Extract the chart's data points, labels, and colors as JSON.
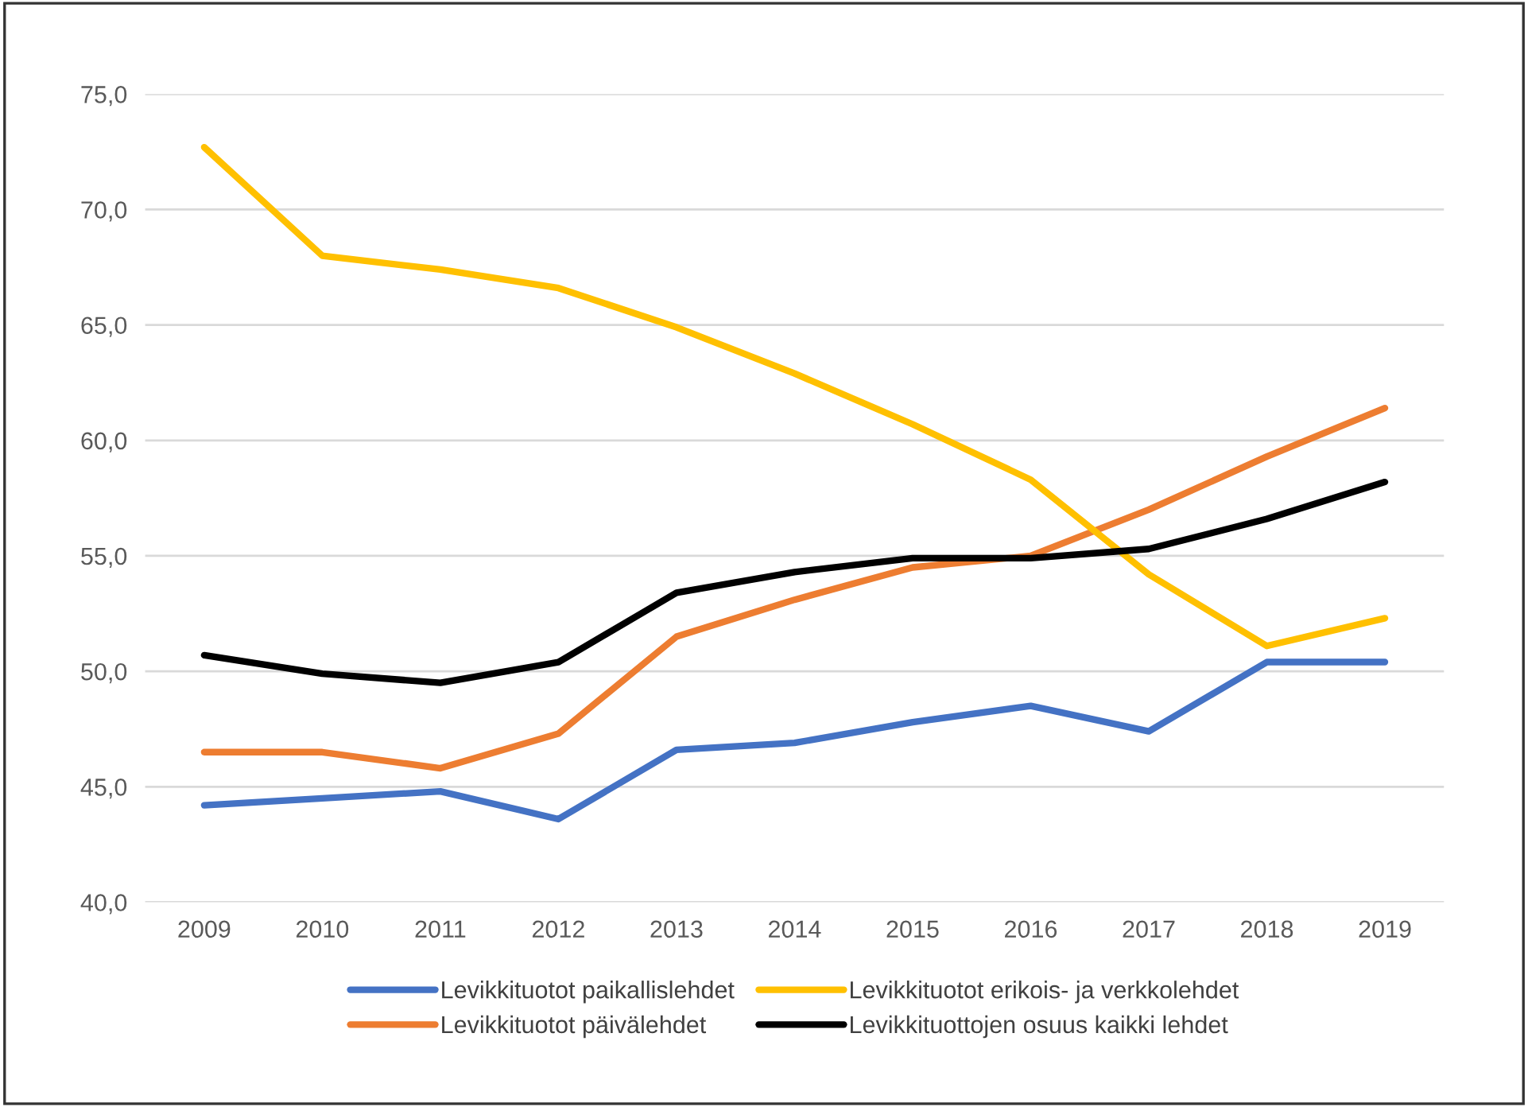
{
  "chart_data": {
    "type": "line",
    "categories": [
      "2009",
      "2010",
      "2011",
      "2012",
      "2013",
      "2014",
      "2015",
      "2016",
      "2017",
      "2018",
      "2019"
    ],
    "series": [
      {
        "name": "Levikkituotot paikallislehdet",
        "color": "#4472c4",
        "values": [
          44.2,
          44.5,
          44.8,
          43.6,
          46.6,
          46.9,
          47.8,
          48.5,
          47.4,
          50.4,
          50.4
        ]
      },
      {
        "name": "Levikkituotot päivälehdet",
        "color": "#ed7d31",
        "values": [
          46.5,
          46.5,
          45.8,
          47.3,
          51.5,
          53.1,
          54.5,
          55.0,
          57.0,
          59.3,
          61.4
        ]
      },
      {
        "name": "Levikkituotot erikois- ja verkkolehdet",
        "color": "#ffc000",
        "values": [
          72.7,
          68.0,
          67.4,
          66.6,
          64.9,
          62.9,
          60.7,
          58.3,
          54.2,
          51.1,
          52.3
        ]
      },
      {
        "name": "Levikkituottojen osuus kaikki lehdet",
        "color": "#000000",
        "values": [
          50.7,
          49.9,
          49.5,
          50.4,
          53.4,
          54.3,
          54.9,
          54.9,
          55.3,
          56.6,
          58.2
        ]
      }
    ],
    "ylim": [
      40,
      75
    ],
    "yticks": [
      {
        "value": 40,
        "label": "40,0"
      },
      {
        "value": 45,
        "label": "45,0"
      },
      {
        "value": 50,
        "label": "50,0"
      },
      {
        "value": 55,
        "label": "55,0"
      },
      {
        "value": 60,
        "label": "60,0"
      },
      {
        "value": 65,
        "label": "65,0"
      },
      {
        "value": 70,
        "label": "70,0"
      },
      {
        "value": 75,
        "label": "75,0"
      }
    ],
    "grid": "y",
    "legend": "bottom",
    "marker": "none",
    "line_style": "solid"
  }
}
